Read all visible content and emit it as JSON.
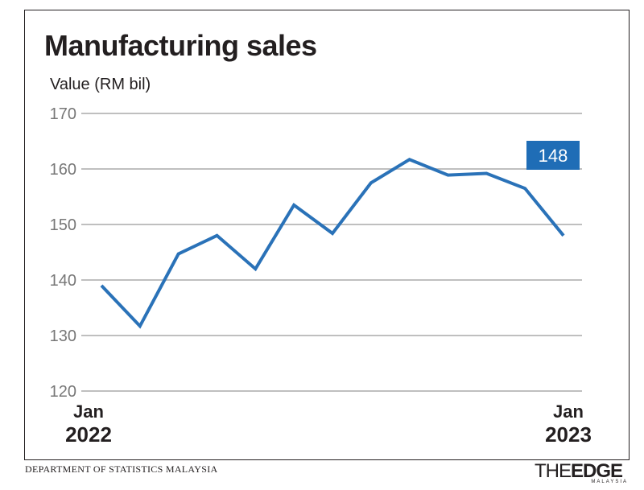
{
  "chart_data": {
    "type": "line",
    "title": "Manufacturing sales",
    "ylabel": "Value (RM bil)",
    "xlabel": "",
    "ylim": [
      120,
      170
    ],
    "yticks": [
      120,
      130,
      140,
      150,
      160,
      170
    ],
    "x_tick_labels": [
      {
        "month": "Jan",
        "year": "2022"
      },
      {
        "month": "Jan",
        "year": "2023"
      }
    ],
    "x": [
      "Jan 2022",
      "Feb 2022",
      "Mar 2022",
      "Apr 2022",
      "May 2022",
      "Jun 2022",
      "Jul 2022",
      "Aug 2022",
      "Sep 2022",
      "Oct 2022",
      "Nov 2022",
      "Dec 2022",
      "Jan 2023"
    ],
    "series": [
      {
        "values": [
          139.0,
          131.7,
          144.7,
          148.0,
          142.0,
          153.5,
          148.4,
          157.5,
          161.7,
          158.9,
          159.2,
          156.5,
          148.0
        ]
      }
    ],
    "annotation": {
      "label": "148",
      "index": 12
    },
    "grid": true,
    "colors": {
      "line": "#2a72b8",
      "grid": "#bfbfbf",
      "callout": "#1f6db6"
    }
  },
  "source": "DEPARTMENT OF STATISTICS MALAYSIA",
  "logo": {
    "main_left": "THE",
    "main_right": "EDGE",
    "sub": "MALAYSIA"
  }
}
